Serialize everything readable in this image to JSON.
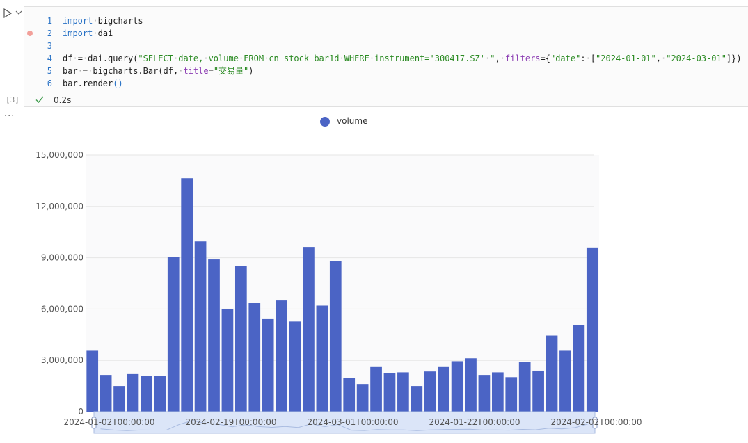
{
  "notebook": {
    "exec_count": "[3]",
    "status_time": "0.2s",
    "more": "···",
    "code": [
      {
        "n": "1",
        "tokens": [
          [
            "kw",
            "import"
          ],
          [
            "ws",
            "·"
          ],
          [
            "tx",
            "bigcharts"
          ]
        ]
      },
      {
        "n": "2",
        "tokens": [
          [
            "kw",
            "import"
          ],
          [
            "ws",
            "·"
          ],
          [
            "tx",
            "dai"
          ]
        ]
      },
      {
        "n": "3",
        "tokens": []
      },
      {
        "n": "4",
        "tokens": [
          [
            "tx",
            "df"
          ],
          [
            "ws",
            "·"
          ],
          [
            "tx",
            "="
          ],
          [
            "ws",
            "·"
          ],
          [
            "tx",
            "dai.query("
          ],
          [
            "st",
            "\"SELECT"
          ],
          [
            "ws",
            "·"
          ],
          [
            "st",
            "date,"
          ],
          [
            "ws",
            "·"
          ],
          [
            "st",
            "volume"
          ],
          [
            "ws",
            "·"
          ],
          [
            "st",
            "FROM"
          ],
          [
            "ws",
            "·"
          ],
          [
            "st",
            "cn_stock_bar1d"
          ],
          [
            "ws",
            "·"
          ],
          [
            "st",
            "WHERE"
          ],
          [
            "ws",
            "·"
          ],
          [
            "st",
            "instrument='300417.SZ'"
          ],
          [
            "ws",
            "·"
          ],
          [
            "st",
            "\""
          ],
          [
            "tx",
            ","
          ],
          [
            "ws",
            "·"
          ],
          [
            "pm",
            "filters"
          ],
          [
            "tx",
            "={"
          ],
          [
            "st",
            "\"date\""
          ],
          [
            "tx",
            ":"
          ],
          [
            "ws",
            "·"
          ],
          [
            "tx",
            "["
          ],
          [
            "st",
            "\"2024-01-01\""
          ],
          [
            "tx",
            ","
          ],
          [
            "ws",
            "·"
          ],
          [
            "st",
            "\"2024-03-01\""
          ],
          [
            "tx",
            "]})"
          ]
        ]
      },
      {
        "n": "5",
        "tokens": [
          [
            "tx",
            "bar"
          ],
          [
            "ws",
            "·"
          ],
          [
            "tx",
            "="
          ],
          [
            "ws",
            "·"
          ],
          [
            "tx",
            "bigcharts.Bar(df,"
          ],
          [
            "ws",
            "·"
          ],
          [
            "pm",
            "title"
          ],
          [
            "tx",
            "="
          ],
          [
            "st",
            "\"交易量\""
          ],
          [
            "tx",
            ")"
          ]
        ]
      },
      {
        "n": "6",
        "tokens": [
          [
            "tx",
            "bar.render"
          ],
          [
            "kw",
            "()"
          ]
        ]
      }
    ]
  },
  "colors": {
    "bar": "#4b64c5",
    "grid": "#e6e6e6",
    "axis_text": "#555555",
    "plot_bg": "#fafafb",
    "zoom_fill": "#dbe5f8",
    "zoom_border": "#a9bbe0"
  },
  "chart_data": {
    "type": "bar",
    "legend": [
      "volume"
    ],
    "legend_position": "top-center",
    "ylim": [
      0,
      15000000
    ],
    "yticks": [
      "0",
      "3,000,000",
      "6,000,000",
      "9,000,000",
      "12,000,000",
      "15,000,000"
    ],
    "xtick_labels": [
      "2024-01-02T00:00:00",
      "2024-02-19T00:00:00",
      "2024-03-01T00:00:00",
      "2024-01-22T00:00:00",
      "2024-02-02T00:00:00"
    ],
    "grid": true,
    "datazoom": true,
    "series": [
      {
        "name": "volume",
        "values": [
          3600000,
          2150000,
          1500000,
          2200000,
          2080000,
          2100000,
          9050000,
          13650000,
          9950000,
          8900000,
          6000000,
          8500000,
          6350000,
          5450000,
          6500000,
          5270000,
          9630000,
          6200000,
          8800000,
          1980000,
          1620000,
          2650000,
          2250000,
          2300000,
          1500000,
          2350000,
          2650000,
          2950000,
          3120000,
          2150000,
          2300000,
          2020000,
          2900000,
          2400000,
          4450000,
          3600000,
          5050000,
          9600000
        ]
      }
    ]
  }
}
